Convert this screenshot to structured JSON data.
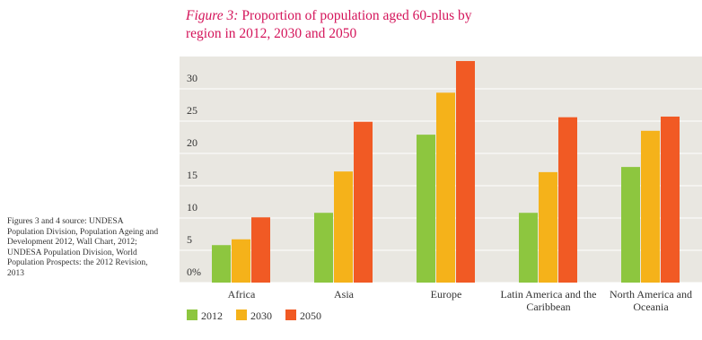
{
  "chart_data": {
    "type": "bar",
    "title_label": "Figure 3:",
    "title": "Proportion of population aged 60-plus by region in 2012, 2030 and 2050",
    "source_note": "Figures 3 and 4 source: UNDESA Population Division, Population Ageing and Development 2012, Wall Chart, 2012; UNDESA Population Division, World Population Prospects: the 2012 Revision, 2013",
    "categories": [
      "Africa",
      "Asia",
      "Europe",
      "Latin America and the Caribbean",
      "North America and Oceania"
    ],
    "series": [
      {
        "name": "2012",
        "color": "#8dc63f",
        "values": [
          5.8,
          10.8,
          22.9,
          10.8,
          17.9
        ]
      },
      {
        "name": "2030",
        "color": "#f5b21a",
        "values": [
          6.7,
          17.2,
          29.4,
          17.1,
          23.5
        ]
      },
      {
        "name": "2050",
        "color": "#f15a24",
        "values": [
          10.1,
          24.9,
          34.3,
          25.6,
          25.7
        ]
      }
    ],
    "ylim": [
      0,
      35
    ],
    "yticks": [
      {
        "value": 0,
        "label": "0%"
      },
      5,
      10,
      15,
      20,
      25,
      30
    ],
    "grid": true
  }
}
